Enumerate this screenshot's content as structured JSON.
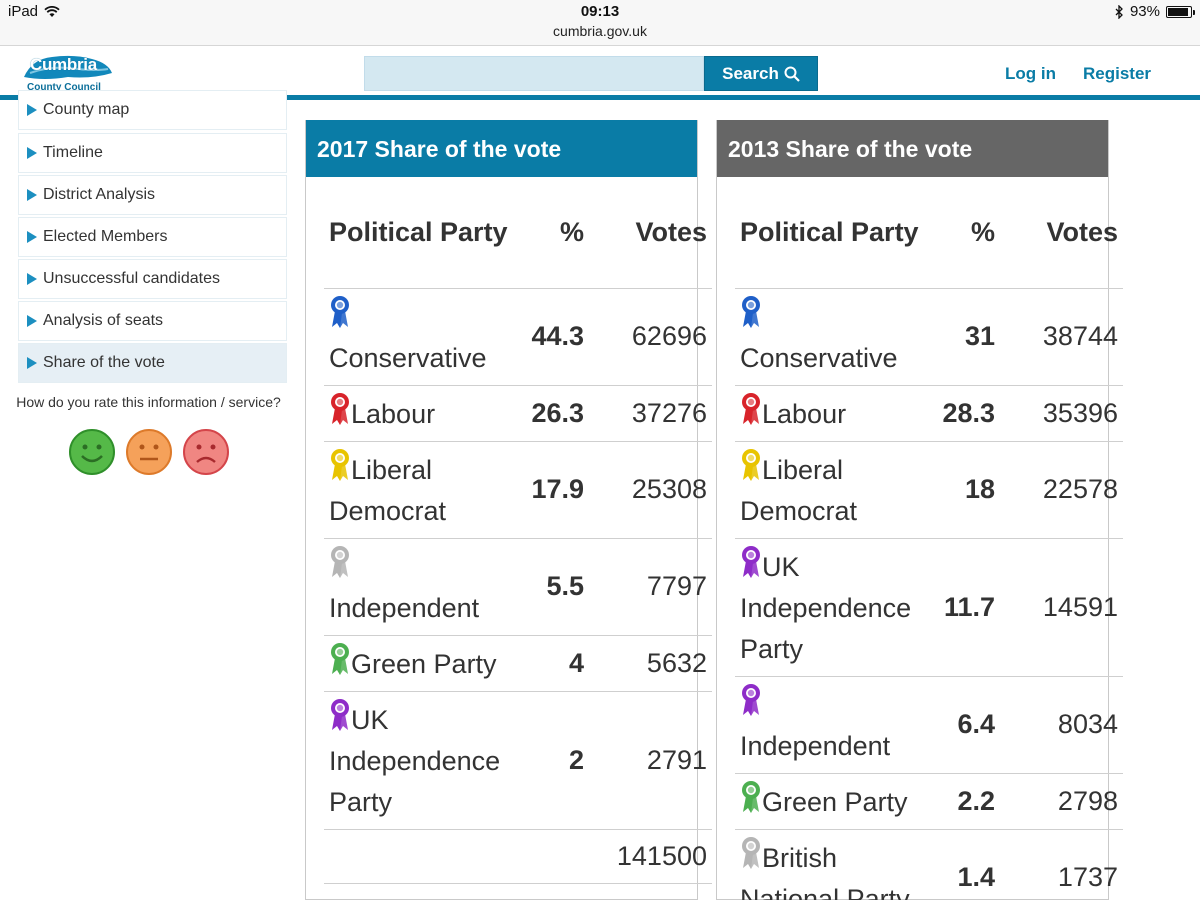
{
  "statusbar": {
    "device": "iPad",
    "time": "09:13",
    "url": "cumbria.gov.uk",
    "battery": "93%",
    "battery_level": 0.93
  },
  "header": {
    "logo_text": "Cumbria",
    "logo_subtitle": "County Council",
    "search_placeholder": "",
    "search_label": "Search",
    "login_label": "Log in",
    "register_label": "Register",
    "accent_color": "#0a7ca6"
  },
  "sidebar": {
    "items": [
      {
        "label": "County map"
      },
      {
        "label": "Timeline"
      },
      {
        "label": "District Analysis"
      },
      {
        "label": "Elected Members"
      },
      {
        "label": "Unsuccessful candidates"
      },
      {
        "label": "Analysis of seats"
      },
      {
        "label": "Share of the vote"
      }
    ],
    "active_item": "Share of the vote",
    "rating_question": "How do you rate this information / service?",
    "faces": [
      "happy-face",
      "neutral-face",
      "sad-face"
    ]
  },
  "table2017": {
    "title": "2017 Share of the vote",
    "header_color": "#0a7ca6",
    "col_party": "Political Party",
    "col_pct": "%",
    "col_votes": "Votes",
    "rows": [
      {
        "party": "Conservative",
        "pct": "44.3",
        "votes": "62696",
        "color": "#1f5fc8",
        "rosette_above": true
      },
      {
        "party": "Labour",
        "pct": "26.3",
        "votes": "37276",
        "color": "#d8232a",
        "rosette_above": false
      },
      {
        "party": "Liberal Democrat",
        "pct": "17.9",
        "votes": "25308",
        "color": "#e8c400",
        "rosette_above": false
      },
      {
        "party": "Independent",
        "pct": "5.5",
        "votes": "7797",
        "color": "#b5b5b5",
        "rosette_above": true
      },
      {
        "party": "Green Party",
        "pct": "4",
        "votes": "5632",
        "color": "#4caf50",
        "rosette_above": false
      },
      {
        "party": "UK Independence Party",
        "pct": "2",
        "votes": "2791",
        "color": "#8e2cc8",
        "rosette_above": false
      }
    ],
    "total_votes": "141500"
  },
  "table2013": {
    "title": "2013 Share of the vote",
    "header_color": "#666666",
    "col_party": "Political Party",
    "col_pct": "%",
    "col_votes": "Votes",
    "rows": [
      {
        "party": "Conservative",
        "pct": "31",
        "votes": "38744",
        "color": "#1f5fc8",
        "rosette_above": true
      },
      {
        "party": "Labour",
        "pct": "28.3",
        "votes": "35396",
        "color": "#d8232a",
        "rosette_above": false
      },
      {
        "party": "Liberal Democrat",
        "pct": "18",
        "votes": "22578",
        "color": "#e8c400",
        "rosette_above": false
      },
      {
        "party": "UK Independence Party",
        "pct": "11.7",
        "votes": "14591",
        "color": "#8e2cc8",
        "rosette_above": false
      },
      {
        "party": "Independent",
        "pct": "6.4",
        "votes": "8034",
        "color": "#8e2cc8",
        "rosette_above": true
      },
      {
        "party": "Green Party",
        "pct": "2.2",
        "votes": "2798",
        "color": "#4caf50",
        "rosette_above": false
      },
      {
        "party": "British National Party",
        "pct": "1.4",
        "votes": "1737",
        "color": "#b5b5b5",
        "rosette_above": false
      }
    ]
  }
}
